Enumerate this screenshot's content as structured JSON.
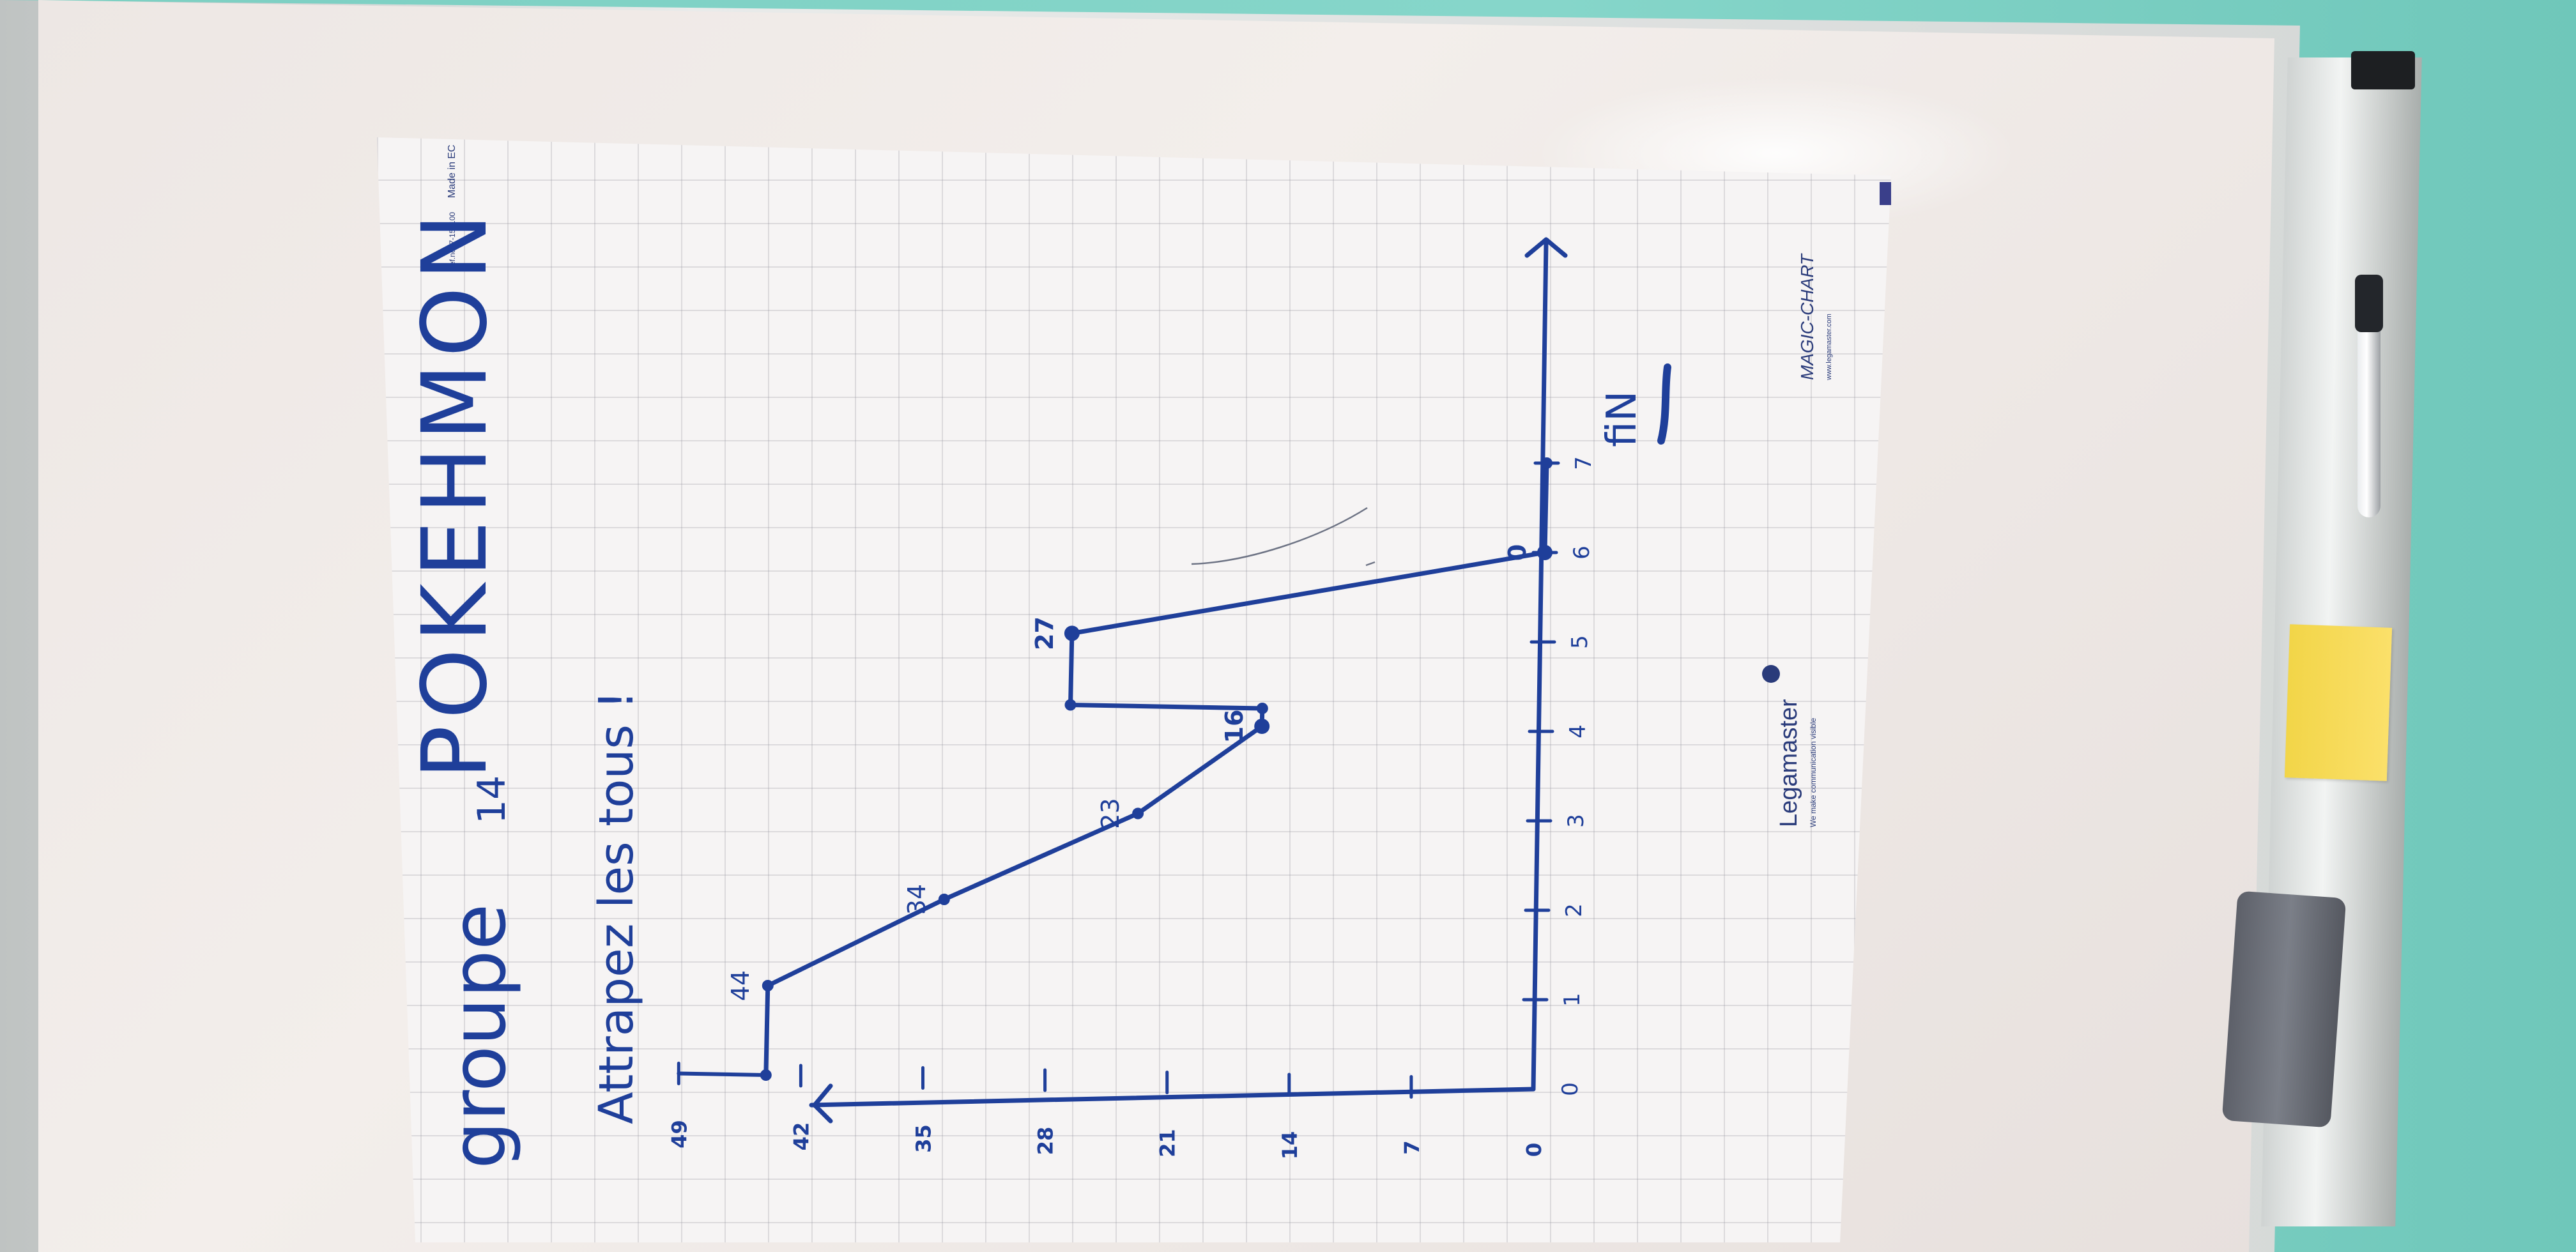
{
  "whiteboard": {
    "title_prefix": "groupe",
    "title_number": "14",
    "title_main": "POKEHMON",
    "subtitle": "Attrapez les tous !",
    "end_label": "fiN"
  },
  "paper_print": {
    "brand": "Legamaster",
    "brand_tagline": "We make communication visible",
    "product": "MAGIC-CHART",
    "product_url": "www.legamaster.com",
    "made_in": "Made in EC",
    "ref": "ref.no. 7-159100"
  },
  "colors": {
    "ink": "#1f3f9a",
    "paper": "#f6f4f4",
    "wall": "#7fd2c5",
    "sticky_note": "#f2d548"
  },
  "chart_data": {
    "type": "line",
    "x_ticks": [
      "0",
      "1",
      "2",
      "3",
      "4",
      "5",
      "6",
      "7"
    ],
    "y_ticks": [
      "0",
      "7",
      "14",
      "21",
      "28",
      "35",
      "42",
      "49"
    ],
    "points": [
      {
        "x": 0,
        "y": 44
      },
      {
        "x": 1,
        "y": 44,
        "label": "44"
      },
      {
        "x": 2,
        "y": 34,
        "label": "34"
      },
      {
        "x": 3,
        "y": 23,
        "label": "23"
      },
      {
        "x": 4,
        "y": 16,
        "label": "16"
      },
      {
        "x": 4.2,
        "y": 16
      },
      {
        "x": 4.2,
        "y": 27
      },
      {
        "x": 5,
        "y": 27,
        "label": "27"
      },
      {
        "x": 6,
        "y": 0,
        "label": "0"
      },
      {
        "x": 7,
        "y": 0
      }
    ],
    "xlim": [
      0,
      7
    ],
    "ylim": [
      0,
      49
    ]
  }
}
